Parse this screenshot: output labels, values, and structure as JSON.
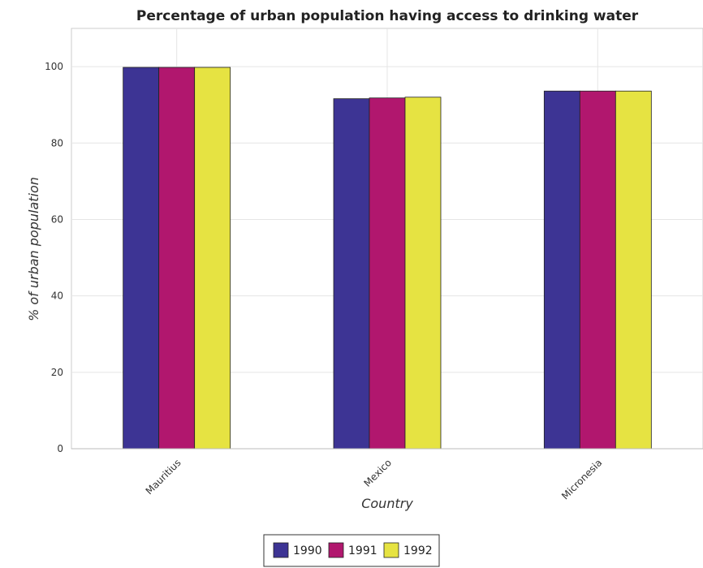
{
  "chart_data": {
    "type": "bar",
    "title": "Percentage of urban population having access to drinking water",
    "xlabel": "Country",
    "ylabel": "% of urban population",
    "categories": [
      "Mauritius",
      "Mexico",
      "Micronesia"
    ],
    "series": [
      {
        "name": "1990",
        "color": "#3d3494",
        "values": [
          99.8,
          91.6,
          93.6
        ]
      },
      {
        "name": "1991",
        "color": "#b1176e",
        "values": [
          99.8,
          91.8,
          93.6
        ]
      },
      {
        "name": "1992",
        "color": "#e6e342",
        "values": [
          99.8,
          92.0,
          93.6
        ]
      }
    ],
    "ylim": [
      0,
      110
    ],
    "yticks": [
      0,
      20,
      40,
      60,
      80,
      100
    ],
    "grid": true,
    "legend_position": "bottom-center"
  }
}
